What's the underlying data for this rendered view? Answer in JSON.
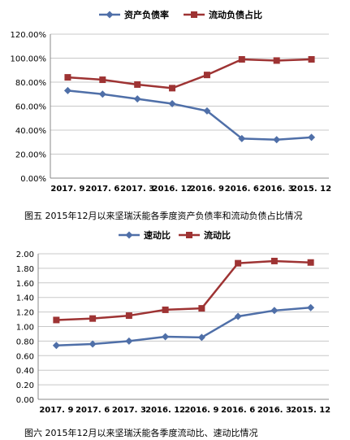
{
  "captions": {
    "chart1": "图五 2015年12月以来坚瑞沃能各季度资产负债率和流动负债占比情况",
    "chart2": "图六 2015年12月以来坚瑞沃能各季度流动比、速动比情况"
  },
  "chart_data": [
    {
      "type": "line",
      "categories": [
        "2017.9",
        "2017.6",
        "2017.3",
        "2016.12",
        "2016.9",
        "2016.6",
        "2016.3",
        "2015.12"
      ],
      "category_labels": [
        "2017. 9",
        "2017. 6",
        "2017. 3",
        "2016. 12",
        "2016. 9",
        "2016. 6",
        "2016. 3",
        "2015. 12"
      ],
      "series": [
        {
          "name": "资产负债率",
          "values": [
            73,
            70,
            66,
            62,
            56,
            33,
            32,
            34
          ],
          "color": "#4f6fa8",
          "marker": "diamond"
        },
        {
          "name": "流动负债占比",
          "values": [
            84,
            82,
            78,
            75,
            86,
            99,
            98,
            99
          ],
          "color": "#9e3333",
          "marker": "square"
        }
      ],
      "ylim": [
        0,
        120
      ],
      "yticks": [
        0,
        20,
        40,
        60,
        80,
        100,
        120
      ],
      "ytick_labels": [
        "0.00%",
        "20.00%",
        "40.00%",
        "60.00%",
        "80.00%",
        "100.00%",
        "120.00%"
      ],
      "legend": "top-center",
      "grid": true
    },
    {
      "type": "line",
      "categories": [
        "2017.9",
        "2017.6",
        "2017.3",
        "2016.12",
        "2016.9",
        "2016.6",
        "2016.3",
        "2015.12"
      ],
      "category_labels": [
        "2017. 9",
        "2017. 6",
        "2017. 3",
        "2016. 12",
        "2016. 9",
        "2016. 6",
        "2016. 3",
        "2015. 12"
      ],
      "series": [
        {
          "name": "速动比",
          "values": [
            0.74,
            0.76,
            0.8,
            0.86,
            0.85,
            1.14,
            1.22,
            1.26
          ],
          "color": "#4f6fa8",
          "marker": "diamond"
        },
        {
          "name": "流动比",
          "values": [
            1.09,
            1.11,
            1.15,
            1.23,
            1.25,
            1.87,
            1.9,
            1.88
          ],
          "color": "#9e3333",
          "marker": "square"
        }
      ],
      "ylim": [
        0,
        2.0
      ],
      "yticks": [
        0,
        0.2,
        0.4,
        0.6,
        0.8,
        1.0,
        1.2,
        1.4,
        1.6,
        1.8,
        2.0
      ],
      "ytick_labels": [
        "0.00",
        "0.20",
        "0.40",
        "0.60",
        "0.80",
        "1.00",
        "1.20",
        "1.40",
        "1.60",
        "1.80",
        "2.00"
      ],
      "legend": "top-center",
      "grid": true
    }
  ]
}
